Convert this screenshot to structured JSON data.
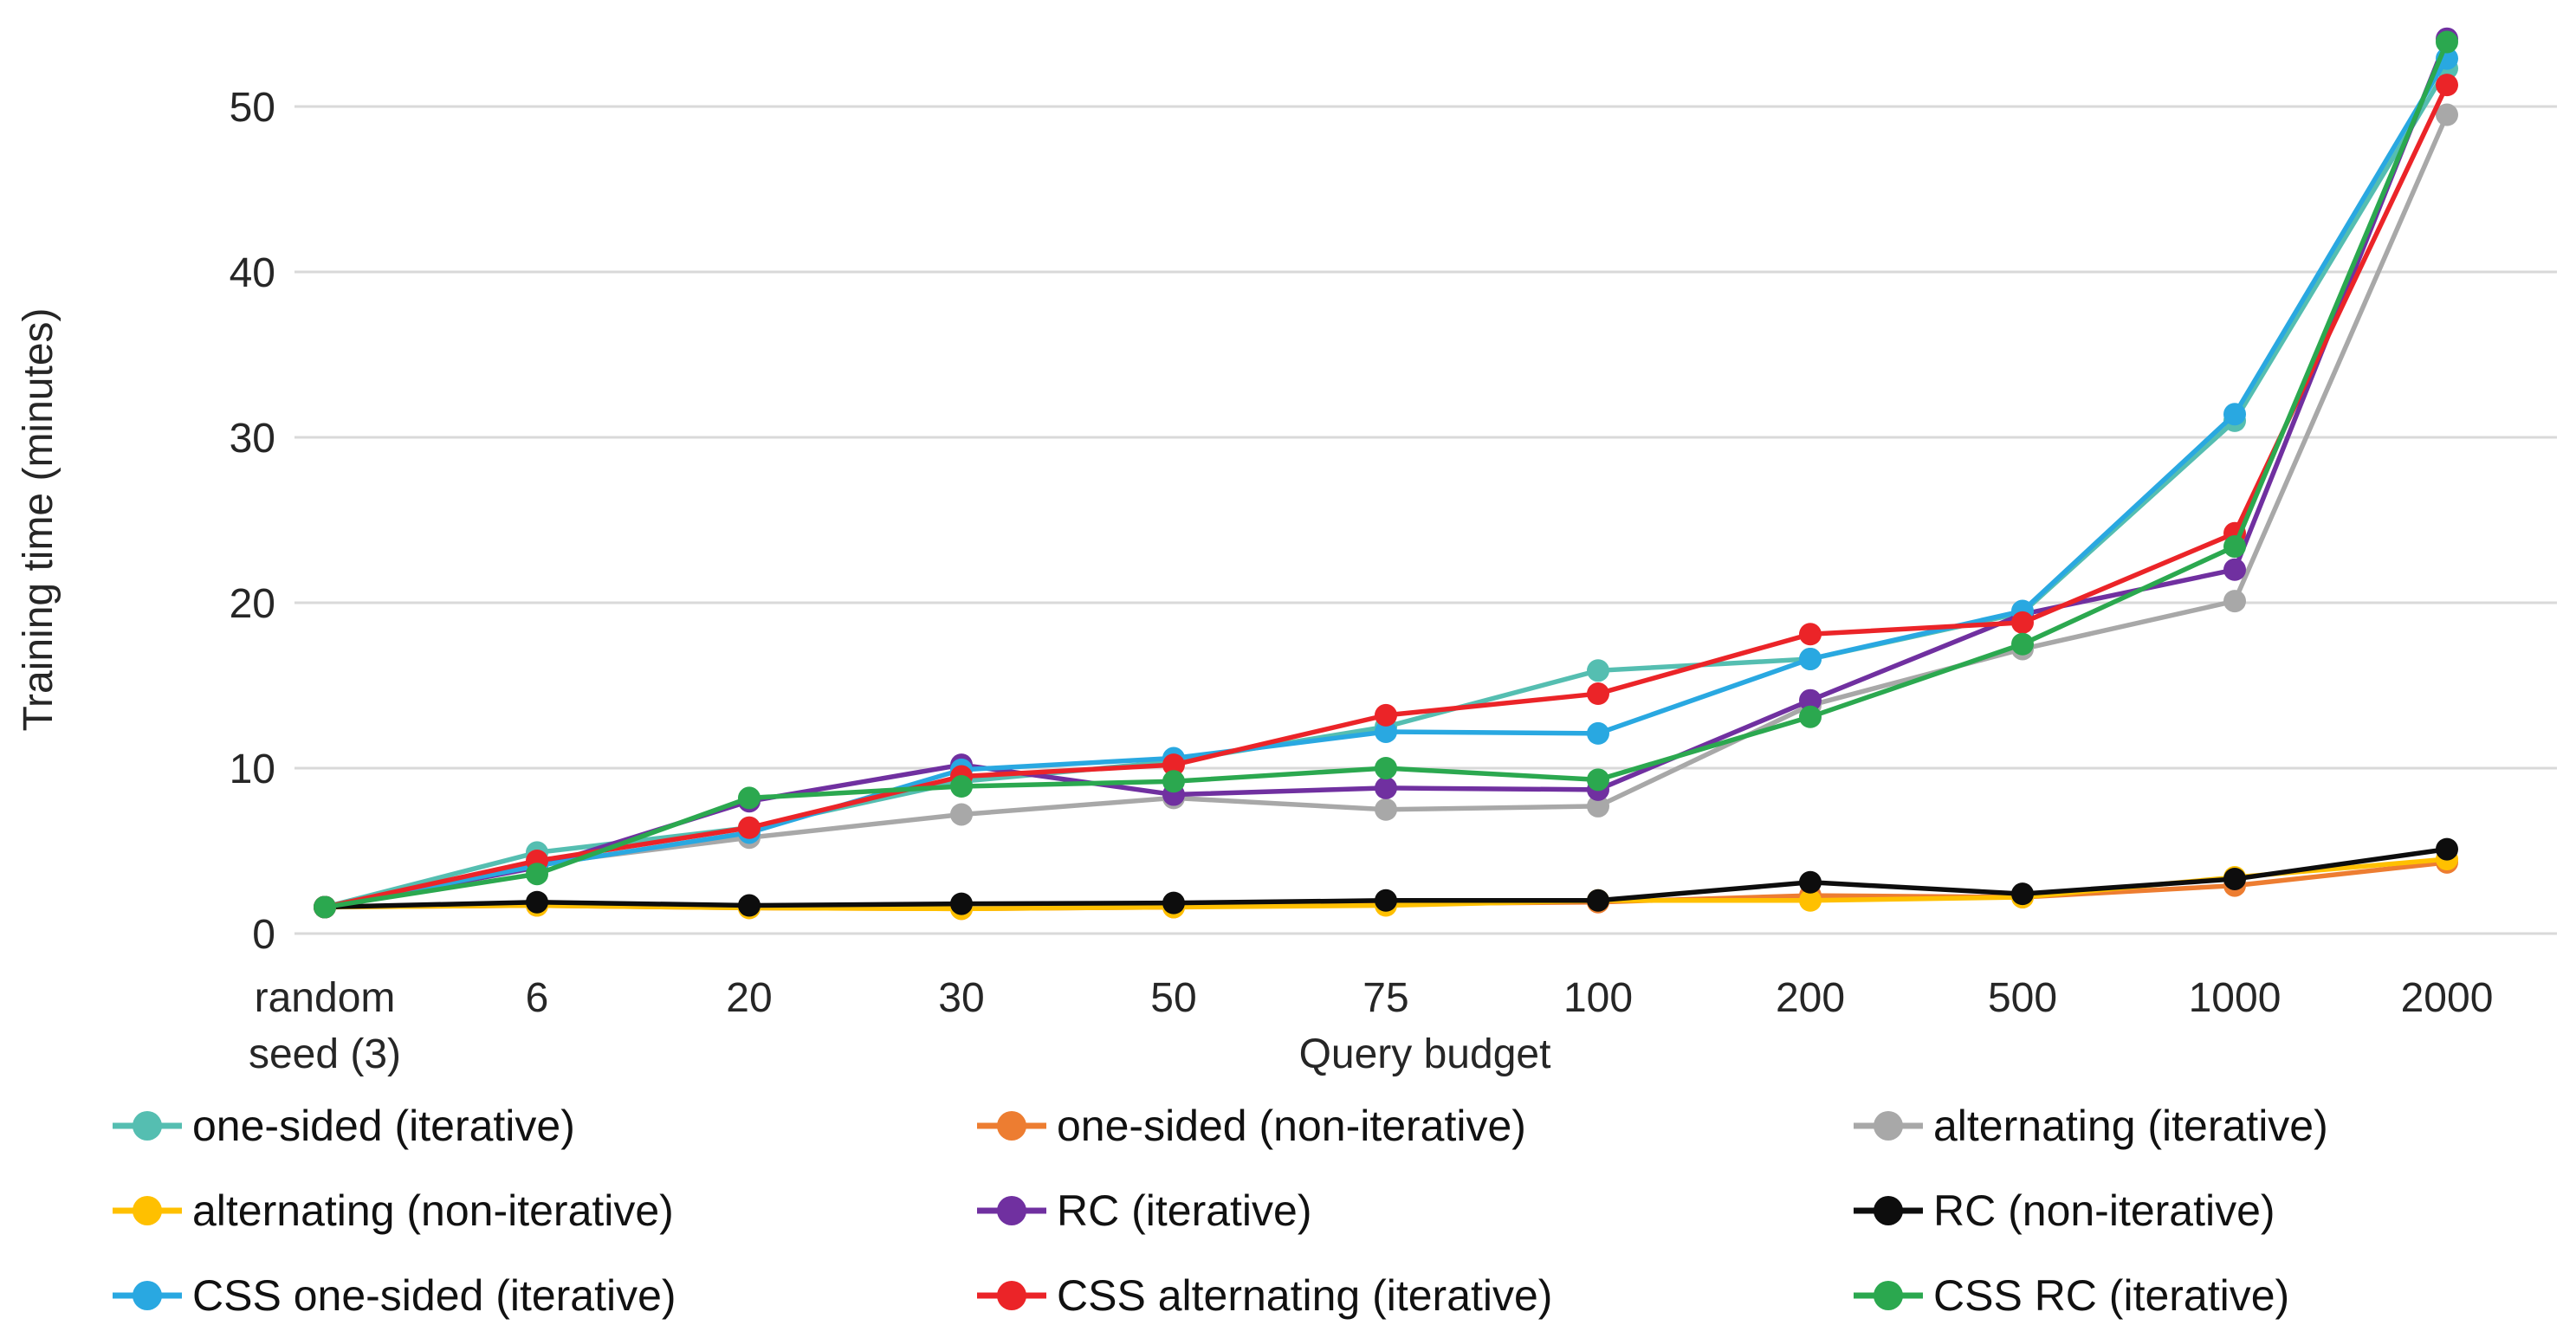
{
  "chart_data": {
    "type": "line",
    "title": "",
    "xlabel": "Query budget",
    "ylabel": "Training time (minutes)",
    "categories": [
      "random\nseed (3)",
      "6",
      "20",
      "30",
      "50",
      "75",
      "100",
      "200",
      "500",
      "1000",
      "2000"
    ],
    "ylim": [
      0,
      55
    ],
    "yticks": [
      0,
      10,
      20,
      30,
      40,
      50
    ],
    "grid": true,
    "legend_position": "bottom",
    "legend_columns": 3,
    "series": [
      {
        "name": "one-sided (iterative)",
        "color": "#55BEB1",
        "values": [
          1.6,
          4.9,
          6.4,
          9.2,
          10.4,
          12.5,
          15.9,
          16.6,
          19.4,
          31.0,
          52.3
        ]
      },
      {
        "name": "one-sided (non-iterative)",
        "color": "#ED7D31",
        "values": [
          1.6,
          1.7,
          1.55,
          1.5,
          1.6,
          1.8,
          1.9,
          2.3,
          2.2,
          2.9,
          4.3
        ]
      },
      {
        "name": "alternating (iterative)",
        "color": "#A8A8A8",
        "values": [
          1.6,
          4.2,
          5.8,
          7.2,
          8.2,
          7.5,
          7.7,
          13.8,
          17.2,
          20.1,
          49.5
        ]
      },
      {
        "name": "alternating (non-iterative)",
        "color": "#FFC000",
        "values": [
          1.6,
          1.7,
          1.55,
          1.5,
          1.6,
          1.7,
          2.0,
          2.0,
          2.2,
          3.4,
          4.5
        ]
      },
      {
        "name": "RC (iterative)",
        "color": "#7030A0",
        "values": [
          1.6,
          4.0,
          8.0,
          10.2,
          8.4,
          8.8,
          8.7,
          14.1,
          19.3,
          22.0,
          54.1
        ]
      },
      {
        "name": "RC (non-iterative)",
        "color": "#0D0D0D",
        "values": [
          1.6,
          1.9,
          1.7,
          1.8,
          1.85,
          2.0,
          2.0,
          3.1,
          2.4,
          3.3,
          5.1
        ]
      },
      {
        "name": "CSS one-sided (iterative)",
        "color": "#29A8E1",
        "values": [
          1.6,
          4.1,
          6.1,
          9.9,
          10.6,
          12.2,
          12.1,
          16.6,
          19.5,
          31.4,
          52.9
        ]
      },
      {
        "name": "CSS alternating (iterative)",
        "color": "#EB2428",
        "values": [
          1.6,
          4.4,
          6.4,
          9.5,
          10.2,
          13.2,
          14.5,
          18.1,
          18.8,
          24.2,
          51.3
        ]
      },
      {
        "name": "CSS RC (iterative)",
        "color": "#2BA84F",
        "values": [
          1.6,
          3.6,
          8.2,
          8.9,
          9.2,
          10.0,
          9.3,
          13.1,
          17.5,
          23.4,
          53.9
        ]
      }
    ]
  },
  "colors": {
    "grid": "#D9D9D9",
    "text": "#262626"
  }
}
